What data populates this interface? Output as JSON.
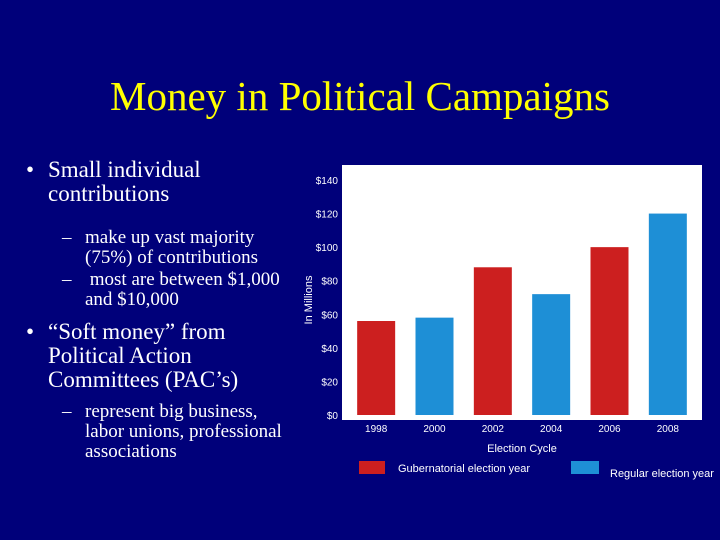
{
  "slide": {
    "title": "Money in Political Campaigns",
    "bullets": [
      {
        "level": 1,
        "marker": "•",
        "text": "Small individual contributions",
        "lines": [
          "Small individual",
          "contributions"
        ]
      },
      {
        "level": 2,
        "marker": "–",
        "text": "make up vast majority (75%) of contributions",
        "lines": [
          "make up vast majority",
          "(75%) of contributions"
        ]
      },
      {
        "level": 2,
        "marker": "–",
        "text": " most are between $1,000 and $10,000",
        "lines": [
          " most are between $1,000",
          "and $10,000"
        ]
      },
      {
        "level": 1,
        "marker": "•",
        "text": "“Soft money” from Political Action Committees (PAC’s)",
        "lines": [
          "“Soft money” from",
          "Political Action",
          "Committees (PAC’s)"
        ]
      },
      {
        "level": 2,
        "marker": "–",
        "text": "represent big business, labor unions, professional associations",
        "lines": [
          "represent big business,",
          "labor unions, professional",
          "associations"
        ]
      }
    ]
  },
  "chart_data": {
    "type": "bar",
    "categories": [
      "1998",
      "2000",
      "2002",
      "2004",
      "2006",
      "2008"
    ],
    "values": [
      56,
      58,
      88,
      72,
      100,
      120
    ],
    "series_type": [
      "Gubernatorial election year",
      "Regular election year",
      "Gubernatorial election year",
      "Regular election year",
      "Gubernatorial election year",
      "Regular election year"
    ],
    "yticks": [
      "$140",
      "$120",
      "$100",
      "$80",
      "$60",
      "$40",
      "$20",
      "$0"
    ],
    "ylim": [
      0,
      140
    ],
    "xlabel": "Election Cycle",
    "ylabel": "In Millions",
    "legend": [
      "Gubernatorial election year",
      "Regular election year"
    ],
    "legend_position": "bottom",
    "colors": {
      "Gubernatorial election year": "#cc1f1f",
      "Regular election year": "#1e8fd6"
    },
    "grid": false
  },
  "colors": {
    "background": "#00007a",
    "title": "#ffff00",
    "text": "#ffffff",
    "plot_area": "#ffffff"
  }
}
